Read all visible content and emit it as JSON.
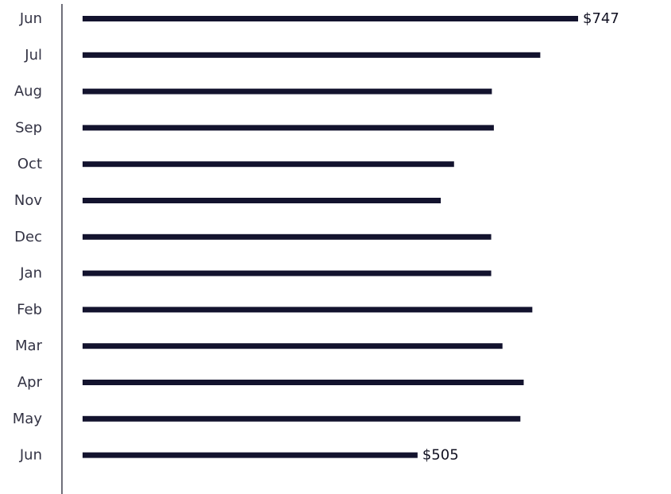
{
  "chart_data": {
    "type": "bar",
    "orientation": "horizontal",
    "categories": [
      "Jun",
      "Jul",
      "Aug",
      "Sep",
      "Oct",
      "Nov",
      "Dec",
      "Jan",
      "Feb",
      "Mar",
      "Apr",
      "May",
      "Jun"
    ],
    "values": [
      747,
      690,
      617,
      620,
      560,
      540,
      616,
      616,
      678,
      633,
      665,
      660,
      505
    ],
    "data_labels": [
      "$747",
      "",
      "",
      "",
      "",
      "",
      "",
      "",
      "",
      "",
      "",
      "",
      "$505"
    ],
    "title": "",
    "xlabel": "",
    "ylabel": "",
    "xlim": [
      0,
      800
    ],
    "grid": false,
    "legend": "none",
    "bar_color": "#13132e",
    "axis_color": "#222233"
  }
}
